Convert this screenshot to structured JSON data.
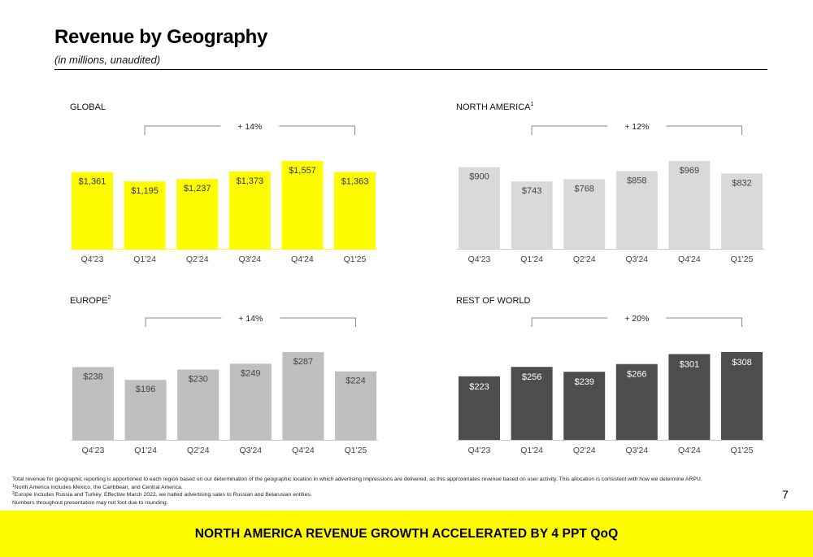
{
  "header": {
    "title": "Revenue by Geography",
    "subtitle": "(in millions, unaudited)"
  },
  "colors": {
    "global": "#FFFC00",
    "north_america": "#D9D9D9",
    "europe": "#BFBFBF",
    "rest_of_world": "#4D4D4D",
    "axis": "#888888",
    "bracket": "#888888",
    "banner": "#FFFC00"
  },
  "chart_data": [
    {
      "type": "bar",
      "title": "GLOBAL",
      "title_sup": "",
      "categories": [
        "Q4'23",
        "Q1'24",
        "Q2'24",
        "Q3'24",
        "Q4'24",
        "Q1'25"
      ],
      "values": [
        1361,
        1195,
        1237,
        1373,
        1557,
        1363
      ],
      "value_labels": [
        "$1,361",
        "$1,195",
        "$1,237",
        "$1,373",
        "$1,557",
        "$1,363"
      ],
      "growth_label": "+ 14%",
      "growth_from": "Q1'24",
      "growth_to": "Q1'25",
      "labels_inside": false
    },
    {
      "type": "bar",
      "title": "NORTH AMERICA",
      "title_sup": "1",
      "categories": [
        "Q4'23",
        "Q1'24",
        "Q2'24",
        "Q3'24",
        "Q4'24",
        "Q1'25"
      ],
      "values": [
        900,
        743,
        768,
        858,
        969,
        832
      ],
      "value_labels": [
        "$900",
        "$743",
        "$768",
        "$858",
        "$969",
        "$832"
      ],
      "growth_label": "+ 12%",
      "growth_from": "Q1'24",
      "growth_to": "Q1'25",
      "labels_inside": false
    },
    {
      "type": "bar",
      "title": "EUROPE",
      "title_sup": "2",
      "categories": [
        "Q4'23",
        "Q1'24",
        "Q2'24",
        "Q3'24",
        "Q4'24",
        "Q1'25"
      ],
      "values": [
        238,
        196,
        230,
        249,
        287,
        224
      ],
      "value_labels": [
        "$238",
        "$196",
        "$230",
        "$249",
        "$287",
        "$224"
      ],
      "growth_label": "+ 14%",
      "growth_from": "Q1'24",
      "growth_to": "Q1'25",
      "labels_inside": false
    },
    {
      "type": "bar",
      "title": "REST OF WORLD",
      "title_sup": "",
      "categories": [
        "Q4'23",
        "Q1'24",
        "Q2'24",
        "Q3'24",
        "Q4'24",
        "Q1'25"
      ],
      "values": [
        223,
        256,
        239,
        266,
        301,
        308
      ],
      "value_labels": [
        "$223",
        "$256",
        "$239",
        "$266",
        "$301",
        "$308"
      ],
      "growth_label": "+ 20%",
      "growth_from": "Q1'24",
      "growth_to": "Q1'25",
      "labels_inside": true
    }
  ],
  "footnotes": {
    "line1": "Total revenue for geographic reporting is apportioned to each region based on our determination of the geographic location in which advertising impressions are delivered, as this approximates revenue based on user activity. This allocation is consistent with how we determine ARPU.",
    "line2_sup": "1",
    "line2": "North America includes Mexico, the Caribbean, and Central America.",
    "line3_sup": "2",
    "line3": "Europe includes Russia and Turkey. Effective March 2022, we halted advertising sales to Russian and Belarusian entities.",
    "line4": "Numbers throughout presentation may not foot due to rounding."
  },
  "page_number": "7",
  "banner": {
    "text": "NORTH AMERICA REVENUE GROWTH ACCELERATED BY 4 PPT QoQ"
  }
}
